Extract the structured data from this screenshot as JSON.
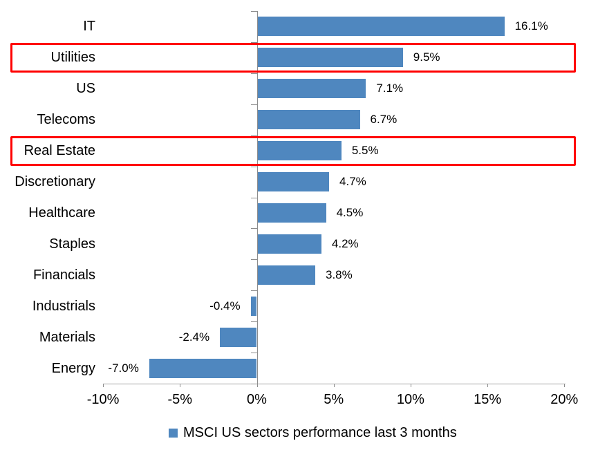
{
  "chart_data": {
    "type": "bar",
    "orientation": "horizontal",
    "title": "",
    "legend": "MSCI US sectors performance last 3 months",
    "legend_position": "bottom",
    "categories": [
      "IT",
      "Utilities",
      "US",
      "Telecoms",
      "Real Estate",
      "Discretionary",
      "Healthcare",
      "Staples",
      "Financials",
      "Industrials",
      "Materials",
      "Energy"
    ],
    "values": [
      16.1,
      9.5,
      7.1,
      6.7,
      5.5,
      4.7,
      4.5,
      4.2,
      3.8,
      -0.4,
      -2.4,
      -7.0
    ],
    "value_labels": [
      "16.1%",
      "9.5%",
      "7.1%",
      "6.7%",
      "5.5%",
      "4.7%",
      "4.5%",
      "4.2%",
      "3.8%",
      "-0.4%",
      "-2.4%",
      "-7.0%"
    ],
    "highlighted_categories": [
      "Utilities",
      "Real Estate"
    ],
    "x_tick_labels": [
      "-10%",
      "-5%",
      "0%",
      "5%",
      "10%",
      "15%",
      "20%"
    ],
    "x_tick_values": [
      -10,
      -5,
      0,
      5,
      10,
      15,
      20
    ],
    "xlim": [
      -10,
      20
    ],
    "grid": false,
    "colors": {
      "bar": "#4f87bf",
      "highlight_box": "#ff0000",
      "axis": "#8c8c8c",
      "text": "#000000",
      "background": "#ffffff"
    }
  }
}
